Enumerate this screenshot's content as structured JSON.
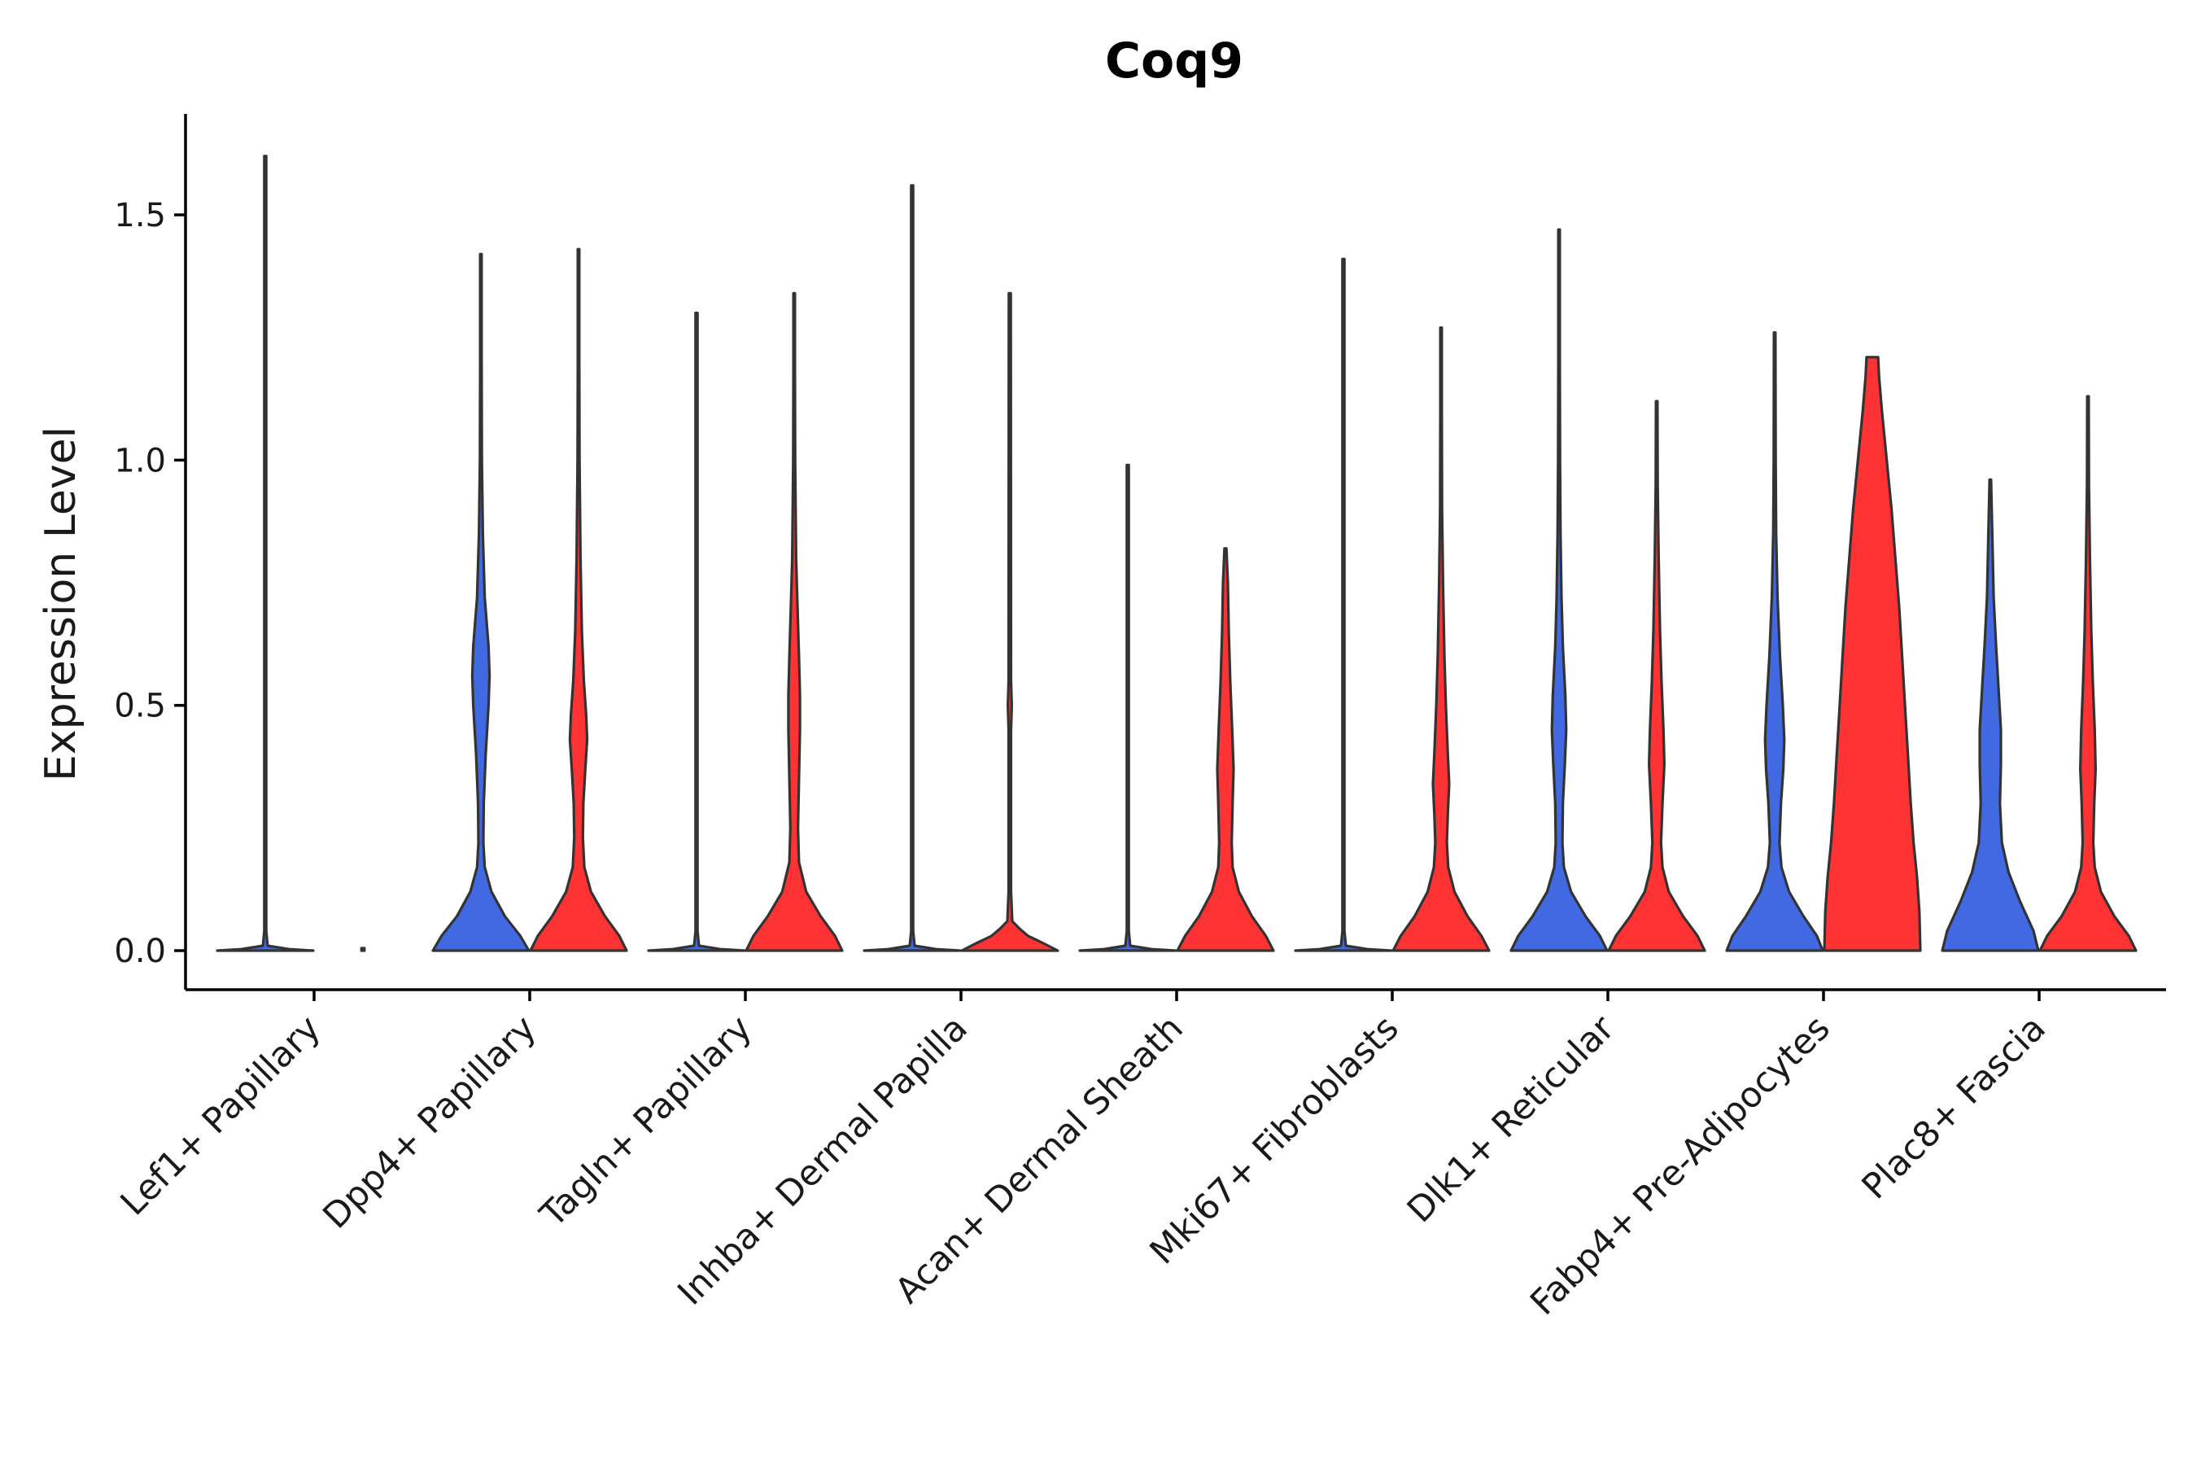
{
  "chart_data": {
    "type": "violin",
    "title": "Coq9",
    "xlabel": "",
    "ylabel": "Expression Level",
    "ylim": [
      -0.08,
      1.7
    ],
    "yticks": [
      0.0,
      0.5,
      1.0,
      1.5
    ],
    "ytick_labels": [
      "0.0",
      "0.5",
      "1.0",
      "1.5"
    ],
    "grid": false,
    "legend": "none",
    "colors": {
      "blue": "#4169E1",
      "red": "#FF3333",
      "outline": "#333333"
    },
    "categories": [
      "Lef1+ Papillary",
      "Dpp4+ Papillary",
      "Tagln+ Papillary",
      "Inhba+ Dermal Papilla",
      "Acan+ Dermal Sheath",
      "Mki67+ Fibroblasts",
      "Dlk1+ Reticular",
      "Fabp4+ Pre-Adipocytes",
      "Plac8+ Fascia"
    ],
    "violins": [
      {
        "category": "Lef1+ Papillary",
        "group": "blue",
        "max": 1.62,
        "profile": [
          [
            0,
            1.0
          ],
          [
            0.003,
            0.5
          ],
          [
            0.01,
            0.05
          ],
          [
            0.04,
            0.02
          ],
          [
            1.62,
            0.02
          ]
        ]
      },
      {
        "category": "Lef1+ Papillary",
        "group": "red",
        "max": 0.005,
        "profile": [
          [
            0,
            0.03
          ],
          [
            0.005,
            0.03
          ]
        ]
      },
      {
        "category": "Dpp4+ Papillary",
        "group": "blue",
        "max": 1.42,
        "profile": [
          [
            0,
            1.0
          ],
          [
            0.03,
            0.82
          ],
          [
            0.07,
            0.5
          ],
          [
            0.12,
            0.22
          ],
          [
            0.17,
            0.08
          ],
          [
            0.22,
            0.05
          ],
          [
            0.3,
            0.06
          ],
          [
            0.4,
            0.1
          ],
          [
            0.5,
            0.16
          ],
          [
            0.56,
            0.18
          ],
          [
            0.62,
            0.16
          ],
          [
            0.72,
            0.08
          ],
          [
            0.85,
            0.04
          ],
          [
            1.0,
            0.02
          ],
          [
            1.2,
            0.015
          ],
          [
            1.42,
            0.01
          ]
        ]
      },
      {
        "category": "Dpp4+ Papillary",
        "group": "red",
        "max": 1.43,
        "profile": [
          [
            0,
            1.0
          ],
          [
            0.03,
            0.85
          ],
          [
            0.07,
            0.55
          ],
          [
            0.12,
            0.26
          ],
          [
            0.17,
            0.12
          ],
          [
            0.23,
            0.09
          ],
          [
            0.3,
            0.1
          ],
          [
            0.37,
            0.14
          ],
          [
            0.43,
            0.18
          ],
          [
            0.48,
            0.16
          ],
          [
            0.55,
            0.11
          ],
          [
            0.65,
            0.07
          ],
          [
            0.8,
            0.04
          ],
          [
            1.0,
            0.02
          ],
          [
            1.2,
            0.015
          ],
          [
            1.43,
            0.01
          ]
        ]
      },
      {
        "category": "Tagln+ Papillary",
        "group": "blue",
        "max": 1.3,
        "profile": [
          [
            0,
            1.0
          ],
          [
            0.003,
            0.5
          ],
          [
            0.01,
            0.05
          ],
          [
            0.04,
            0.02
          ],
          [
            1.3,
            0.02
          ]
        ]
      },
      {
        "category": "Tagln+ Papillary",
        "group": "red",
        "max": 1.34,
        "profile": [
          [
            0,
            1.0
          ],
          [
            0.03,
            0.85
          ],
          [
            0.07,
            0.55
          ],
          [
            0.12,
            0.25
          ],
          [
            0.18,
            0.1
          ],
          [
            0.25,
            0.08
          ],
          [
            0.35,
            0.1
          ],
          [
            0.45,
            0.12
          ],
          [
            0.52,
            0.12
          ],
          [
            0.6,
            0.1
          ],
          [
            0.7,
            0.07
          ],
          [
            0.8,
            0.04
          ],
          [
            1.0,
            0.02
          ],
          [
            1.2,
            0.015
          ],
          [
            1.34,
            0.01
          ]
        ]
      },
      {
        "category": "Inhba+ Dermal Papilla",
        "group": "blue",
        "max": 1.56,
        "profile": [
          [
            0,
            1.0
          ],
          [
            0.003,
            0.5
          ],
          [
            0.01,
            0.05
          ],
          [
            0.04,
            0.02
          ],
          [
            1.56,
            0.02
          ]
        ]
      },
      {
        "category": "Inhba+ Dermal Papilla",
        "group": "red",
        "max": 1.34,
        "profile": [
          [
            0,
            1.0
          ],
          [
            0.015,
            0.7
          ],
          [
            0.03,
            0.38
          ],
          [
            0.045,
            0.2
          ],
          [
            0.06,
            0.05
          ],
          [
            0.12,
            0.025
          ],
          [
            0.45,
            0.025
          ],
          [
            0.5,
            0.04
          ],
          [
            0.55,
            0.025
          ],
          [
            1.34,
            0.02
          ]
        ]
      },
      {
        "category": "Acan+ Dermal Sheath",
        "group": "blue",
        "max": 0.99,
        "profile": [
          [
            0,
            1.0
          ],
          [
            0.003,
            0.5
          ],
          [
            0.01,
            0.05
          ],
          [
            0.04,
            0.02
          ],
          [
            0.99,
            0.02
          ]
        ]
      },
      {
        "category": "Acan+ Dermal Sheath",
        "group": "red",
        "max": 0.82,
        "profile": [
          [
            0,
            1.0
          ],
          [
            0.03,
            0.84
          ],
          [
            0.07,
            0.55
          ],
          [
            0.12,
            0.28
          ],
          [
            0.17,
            0.15
          ],
          [
            0.22,
            0.13
          ],
          [
            0.3,
            0.15
          ],
          [
            0.37,
            0.17
          ],
          [
            0.45,
            0.14
          ],
          [
            0.55,
            0.1
          ],
          [
            0.65,
            0.07
          ],
          [
            0.75,
            0.05
          ],
          [
            0.82,
            0.02
          ]
        ]
      },
      {
        "category": "Mki67+ Fibroblasts",
        "group": "blue",
        "max": 1.41,
        "profile": [
          [
            0,
            1.0
          ],
          [
            0.003,
            0.5
          ],
          [
            0.01,
            0.05
          ],
          [
            0.04,
            0.02
          ],
          [
            1.41,
            0.02
          ]
        ]
      },
      {
        "category": "Mki67+ Fibroblasts",
        "group": "red",
        "max": 1.27,
        "profile": [
          [
            0,
            1.0
          ],
          [
            0.03,
            0.84
          ],
          [
            0.07,
            0.55
          ],
          [
            0.12,
            0.28
          ],
          [
            0.17,
            0.15
          ],
          [
            0.22,
            0.12
          ],
          [
            0.28,
            0.14
          ],
          [
            0.34,
            0.17
          ],
          [
            0.4,
            0.14
          ],
          [
            0.5,
            0.1
          ],
          [
            0.6,
            0.07
          ],
          [
            0.75,
            0.04
          ],
          [
            0.9,
            0.02
          ],
          [
            1.1,
            0.015
          ],
          [
            1.27,
            0.01
          ]
        ]
      },
      {
        "category": "Dlk1+ Reticular",
        "group": "blue",
        "max": 1.47,
        "profile": [
          [
            0,
            1.0
          ],
          [
            0.03,
            0.85
          ],
          [
            0.07,
            0.55
          ],
          [
            0.12,
            0.25
          ],
          [
            0.17,
            0.1
          ],
          [
            0.22,
            0.07
          ],
          [
            0.3,
            0.08
          ],
          [
            0.38,
            0.12
          ],
          [
            0.45,
            0.15
          ],
          [
            0.52,
            0.13
          ],
          [
            0.62,
            0.08
          ],
          [
            0.72,
            0.05
          ],
          [
            0.85,
            0.03
          ],
          [
            1.0,
            0.02
          ],
          [
            1.2,
            0.015
          ],
          [
            1.47,
            0.01
          ]
        ]
      },
      {
        "category": "Dlk1+ Reticular",
        "group": "red",
        "max": 1.12,
        "profile": [
          [
            0,
            1.0
          ],
          [
            0.03,
            0.85
          ],
          [
            0.07,
            0.55
          ],
          [
            0.12,
            0.25
          ],
          [
            0.17,
            0.12
          ],
          [
            0.22,
            0.09
          ],
          [
            0.3,
            0.12
          ],
          [
            0.38,
            0.16
          ],
          [
            0.45,
            0.14
          ],
          [
            0.55,
            0.1
          ],
          [
            0.65,
            0.07
          ],
          [
            0.8,
            0.04
          ],
          [
            0.95,
            0.02
          ],
          [
            1.12,
            0.01
          ]
        ]
      },
      {
        "category": "Fabp4+ Pre-Adipocytes",
        "group": "blue",
        "max": 1.26,
        "profile": [
          [
            0,
            1.0
          ],
          [
            0.03,
            0.88
          ],
          [
            0.07,
            0.6
          ],
          [
            0.12,
            0.3
          ],
          [
            0.17,
            0.14
          ],
          [
            0.22,
            0.1
          ],
          [
            0.3,
            0.13
          ],
          [
            0.37,
            0.18
          ],
          [
            0.43,
            0.2
          ],
          [
            0.5,
            0.17
          ],
          [
            0.6,
            0.11
          ],
          [
            0.72,
            0.06
          ],
          [
            0.85,
            0.03
          ],
          [
            1.0,
            0.02
          ],
          [
            1.26,
            0.01
          ]
        ]
      },
      {
        "category": "Fabp4+ Pre-Adipocytes",
        "group": "red",
        "max": 1.21,
        "profile": [
          [
            0,
            1.0
          ],
          [
            0.08,
            0.98
          ],
          [
            0.15,
            0.93
          ],
          [
            0.22,
            0.86
          ],
          [
            0.3,
            0.8
          ],
          [
            0.4,
            0.74
          ],
          [
            0.5,
            0.68
          ],
          [
            0.6,
            0.62
          ],
          [
            0.7,
            0.56
          ],
          [
            0.8,
            0.48
          ],
          [
            0.9,
            0.4
          ],
          [
            1.0,
            0.3
          ],
          [
            1.1,
            0.2
          ],
          [
            1.17,
            0.14
          ],
          [
            1.21,
            0.12
          ]
        ]
      },
      {
        "category": "Plac8+ Fascia",
        "group": "blue",
        "max": 0.96,
        "profile": [
          [
            0,
            1.0
          ],
          [
            0.04,
            0.9
          ],
          [
            0.1,
            0.62
          ],
          [
            0.16,
            0.38
          ],
          [
            0.22,
            0.24
          ],
          [
            0.3,
            0.2
          ],
          [
            0.38,
            0.22
          ],
          [
            0.45,
            0.22
          ],
          [
            0.52,
            0.18
          ],
          [
            0.62,
            0.12
          ],
          [
            0.72,
            0.07
          ],
          [
            0.85,
            0.04
          ],
          [
            0.96,
            0.015
          ]
        ]
      },
      {
        "category": "Plac8+ Fascia",
        "group": "red",
        "max": 1.13,
        "profile": [
          [
            0,
            1.0
          ],
          [
            0.03,
            0.85
          ],
          [
            0.07,
            0.55
          ],
          [
            0.12,
            0.27
          ],
          [
            0.17,
            0.14
          ],
          [
            0.22,
            0.11
          ],
          [
            0.3,
            0.13
          ],
          [
            0.37,
            0.16
          ],
          [
            0.45,
            0.14
          ],
          [
            0.55,
            0.1
          ],
          [
            0.65,
            0.07
          ],
          [
            0.8,
            0.04
          ],
          [
            0.95,
            0.02
          ],
          [
            1.13,
            0.01
          ]
        ]
      }
    ]
  }
}
